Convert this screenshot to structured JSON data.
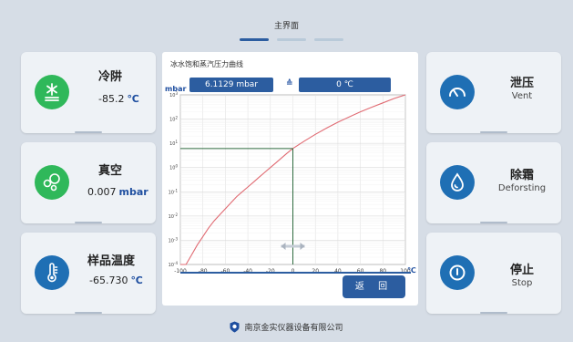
{
  "header": {
    "title": "主界面"
  },
  "pager": {
    "pages": 3,
    "active_index": 0
  },
  "left_cards": [
    {
      "title": "冷阱",
      "value": "-85.2",
      "unit": "℃",
      "icon": "snowflake-icon"
    },
    {
      "title": "真空",
      "value": "0.007",
      "unit": "mbar",
      "icon": "vacuum-bubbles-icon"
    },
    {
      "title": "样品温度",
      "value": "-65.730",
      "unit": "℃",
      "icon": "thermometer-icon"
    }
  ],
  "right_cards": [
    {
      "title": "泄压",
      "subtitle": "Vent",
      "icon": "gauge-icon"
    },
    {
      "title": "除霜",
      "subtitle": "Deforsting",
      "icon": "droplet-icon"
    },
    {
      "title": "停止",
      "subtitle": "Stop",
      "icon": "power-icon"
    }
  ],
  "chart_panel": {
    "title": "冰水饱和蒸汽压力曲线",
    "pressure_unit": "mbar",
    "pressure_value": "6.1129 mbar",
    "equals_symbol": "≙",
    "temperature_value": "0 ℃",
    "back_label": "返 回"
  },
  "chart_data": {
    "type": "line",
    "xlabel": "℃",
    "ylabel": "",
    "xlim": [
      -100,
      100
    ],
    "ylim_exponent": [
      -4,
      3
    ],
    "y_scale": "log",
    "x_ticks": [
      -100,
      -80,
      -60,
      -40,
      -20,
      0,
      20,
      40,
      60,
      80,
      100
    ],
    "y_tick_exponents": [
      -4,
      -3,
      -2,
      -1,
      0,
      1,
      2,
      3
    ],
    "grid": true,
    "series": [
      {
        "x": [
          -100,
          -95,
          -90,
          -85,
          -80,
          -75,
          -70,
          -65,
          -60,
          -55,
          -50,
          -45,
          -40,
          -35,
          -30,
          -25,
          -20,
          -15,
          -10,
          -5,
          0,
          10,
          20,
          30,
          40,
          50,
          60,
          70,
          80,
          90,
          100
        ],
        "log10_y": [
          -4,
          -4,
          -3.6,
          -3.2,
          -2.85,
          -2.5,
          -2.2,
          -1.95,
          -1.7,
          -1.45,
          -1.2,
          -1.0,
          -0.8,
          -0.6,
          -0.4,
          -0.2,
          0.0,
          0.2,
          0.4,
          0.6,
          0.786,
          1.09,
          1.37,
          1.63,
          1.87,
          2.09,
          2.3,
          2.49,
          2.67,
          2.85,
          3.0
        ]
      }
    ],
    "marker": {
      "x": 0,
      "log10_y": 0.786
    },
    "colors": {
      "curve": "#e06a72",
      "marker": "#2d6a3e",
      "axis": "#2c5da0"
    }
  },
  "footer": {
    "company": "南京金实仪器设备有限公司"
  }
}
